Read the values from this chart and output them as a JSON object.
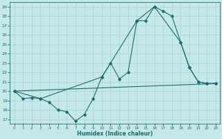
{
  "xlabel": "Humidex (Indice chaleur)",
  "bg_color": "#c5e8e8",
  "line_color": "#1a6b6b",
  "grid_color": "#a8d4d4",
  "xlim": [
    -0.5,
    23.5
  ],
  "ylim": [
    16.5,
    29.5
  ],
  "yticks": [
    17,
    18,
    19,
    20,
    21,
    22,
    23,
    24,
    25,
    26,
    27,
    28,
    29
  ],
  "xticks": [
    0,
    1,
    2,
    3,
    4,
    5,
    6,
    7,
    8,
    9,
    10,
    11,
    12,
    13,
    14,
    15,
    16,
    17,
    18,
    19,
    20,
    21,
    22,
    23
  ],
  "line1_x": [
    0,
    1,
    2,
    3,
    4,
    5,
    6,
    7,
    8,
    9,
    10,
    11,
    12,
    13,
    14,
    15,
    16,
    17,
    18,
    19,
    20,
    21,
    22,
    23
  ],
  "line1_y": [
    20.0,
    19.2,
    19.3,
    19.2,
    18.8,
    18.0,
    17.8,
    16.8,
    17.5,
    19.2,
    21.5,
    23.0,
    21.3,
    22.0,
    27.5,
    27.5,
    29.0,
    28.5,
    28.0,
    25.2,
    22.5,
    21.0,
    20.8,
    20.8
  ],
  "line2_x": [
    0,
    3,
    10,
    14,
    16,
    19,
    20,
    21,
    22,
    23
  ],
  "line2_y": [
    20.0,
    19.2,
    21.5,
    27.5,
    29.0,
    25.2,
    22.5,
    21.0,
    20.8,
    20.8
  ],
  "line3_x": [
    0,
    23
  ],
  "line3_y": [
    20.0,
    20.8
  ]
}
